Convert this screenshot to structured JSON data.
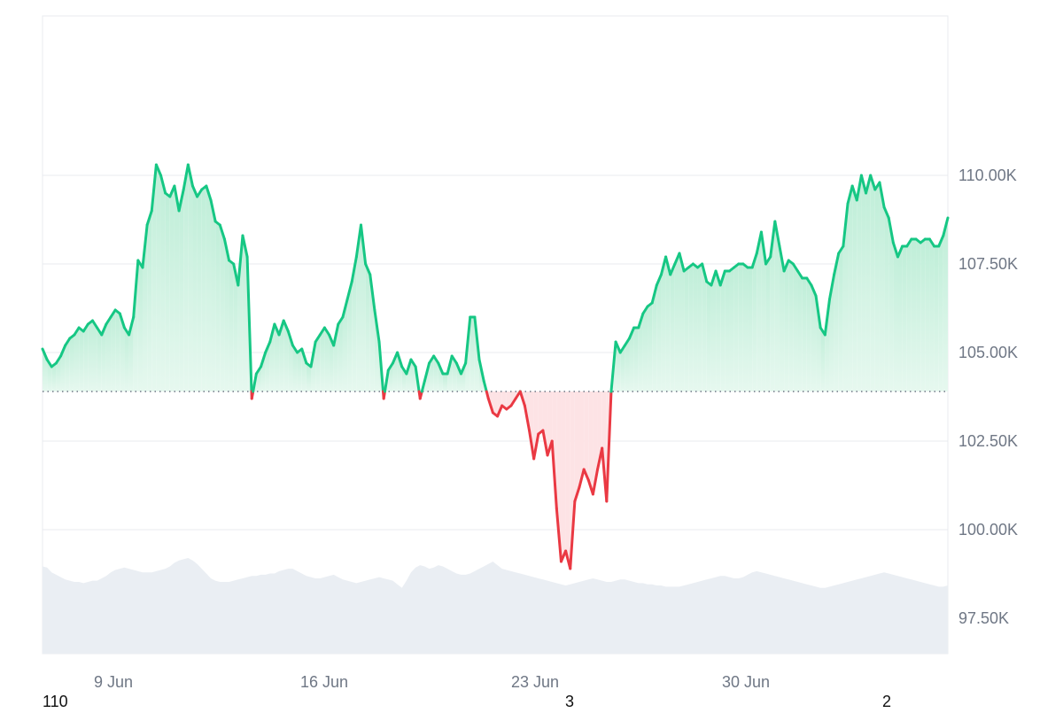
{
  "chart_data": {
    "type": "area",
    "title": "",
    "xlabel": "",
    "ylabel": "",
    "baseline": 103900,
    "ylim": [
      96500,
      114500
    ],
    "grid": true,
    "x_tick_labels": [
      "9 Jun",
      "16 Jun",
      "23 Jun",
      "30 Jun"
    ],
    "y_tick_labels": [
      "110.00K",
      "107.50K",
      "105.00K",
      "102.50K",
      "100.00K",
      "97.50K"
    ],
    "y_tick_values": [
      110000,
      107500,
      105000,
      102500,
      100000,
      97500
    ],
    "footer_labels": [
      "110",
      "3",
      "2"
    ],
    "colors": {
      "up_line": "#16c784",
      "down_line": "#ea3943",
      "up_fill_top": "#bfeed8",
      "up_fill_bottom": "#e6f8ef",
      "down_fill": "#fde3e5",
      "volume_fill": "#eaeef3",
      "grid": "#e8ebef",
      "baseline": "#6f7785",
      "tick_text": "#6f7785"
    },
    "series": [
      {
        "values": [
          105100,
          104800,
          104600,
          104700,
          104900,
          105200,
          105400,
          105500,
          105700,
          105600,
          105800,
          105900,
          105700,
          105500,
          105800,
          106000,
          106200,
          106100,
          105700,
          105500,
          106000,
          107600,
          107400,
          108600,
          109000,
          110300,
          110000,
          109500,
          109400,
          109700,
          109000,
          109600,
          110300,
          109700,
          109400,
          109600,
          109700,
          109300,
          108700,
          108600,
          108200,
          107600,
          107500,
          106900,
          108300,
          107700,
          103700,
          104400,
          104600,
          105000,
          105300,
          105800,
          105500,
          105900,
          105600,
          105200,
          105000,
          105100,
          104700,
          104600,
          105300,
          105500,
          105700,
          105500,
          105200,
          105800,
          106000,
          106500,
          107000,
          107700,
          108600,
          107500,
          107200,
          106200,
          105300,
          103700,
          104500,
          104700,
          105000,
          104600,
          104400,
          104800,
          104600,
          103700,
          104200,
          104700,
          104900,
          104700,
          104400,
          104400,
          104900,
          104700,
          104400,
          104700,
          106000,
          106000,
          104800,
          104200,
          103700,
          103300,
          103200,
          103500,
          103400,
          103500,
          103700,
          103900,
          103500,
          102800,
          102000,
          102700,
          102800,
          102100,
          102500,
          100600,
          99100,
          99400,
          98900,
          100800,
          101200,
          101700,
          101400,
          101000,
          101700,
          102300,
          100800,
          103900,
          105300,
          105000,
          105200,
          105400,
          105700,
          105700,
          106100,
          106300,
          106400,
          106900,
          107200,
          107700,
          107200,
          107500,
          107800,
          107300,
          107400,
          107500,
          107400,
          107500,
          107000,
          106900,
          107300,
          106900,
          107300,
          107300,
          107400,
          107500,
          107500,
          107400,
          107400,
          107800,
          108400,
          107500,
          107700,
          108700,
          108000,
          107300,
          107600,
          107500,
          107300,
          107100,
          107100,
          106900,
          106600,
          105700,
          105500,
          106500,
          107200,
          107800,
          108000,
          109200,
          109700,
          109300,
          110000,
          109500,
          110000,
          109600,
          109800,
          109100,
          108800,
          108100,
          107700,
          108000,
          108000,
          108200,
          108200,
          108100,
          108200,
          108200,
          108000,
          108000,
          108300,
          108800
        ]
      }
    ],
    "volume": {
      "values": [
        73,
        72,
        68,
        66,
        64,
        62,
        61,
        60,
        60,
        59,
        60,
        61,
        61,
        63,
        65,
        68,
        70,
        71,
        72,
        71,
        70,
        69,
        68,
        68,
        68,
        69,
        70,
        71,
        73,
        76,
        78,
        79,
        80,
        78,
        75,
        71,
        67,
        63,
        61,
        60,
        60,
        60,
        61,
        62,
        63,
        64,
        65,
        65,
        66,
        66,
        67,
        67,
        69,
        70,
        71,
        71,
        69,
        67,
        65,
        64,
        63,
        63,
        64,
        65,
        66,
        64,
        62,
        61,
        60,
        59,
        60,
        61,
        62,
        63,
        64,
        63,
        62,
        61,
        58,
        55,
        61,
        68,
        72,
        74,
        73,
        71,
        72,
        74,
        73,
        71,
        69,
        67,
        66,
        66,
        67,
        69,
        71,
        73,
        75,
        77,
        74,
        71,
        70,
        69,
        68,
        67,
        66,
        65,
        64,
        63,
        62,
        61,
        60,
        59,
        58,
        57,
        58,
        59,
        60,
        61,
        62,
        63,
        62,
        61,
        60,
        60,
        61,
        62,
        62,
        61,
        60,
        59,
        59,
        58,
        58,
        57,
        57,
        56,
        56,
        56,
        56,
        57,
        58,
        59,
        60,
        61,
        62,
        63,
        64,
        65,
        65,
        64,
        63,
        63,
        64,
        66,
        68,
        69,
        68,
        67,
        66,
        65,
        64,
        63,
        62,
        61,
        60,
        59,
        58,
        57,
        56,
        55,
        55,
        56,
        57,
        58,
        59,
        60,
        61,
        62,
        63,
        64,
        65,
        66,
        67,
        68,
        67,
        66,
        65,
        64,
        63,
        62,
        61,
        60,
        59,
        58,
        57,
        56,
        56,
        57
      ]
    }
  }
}
